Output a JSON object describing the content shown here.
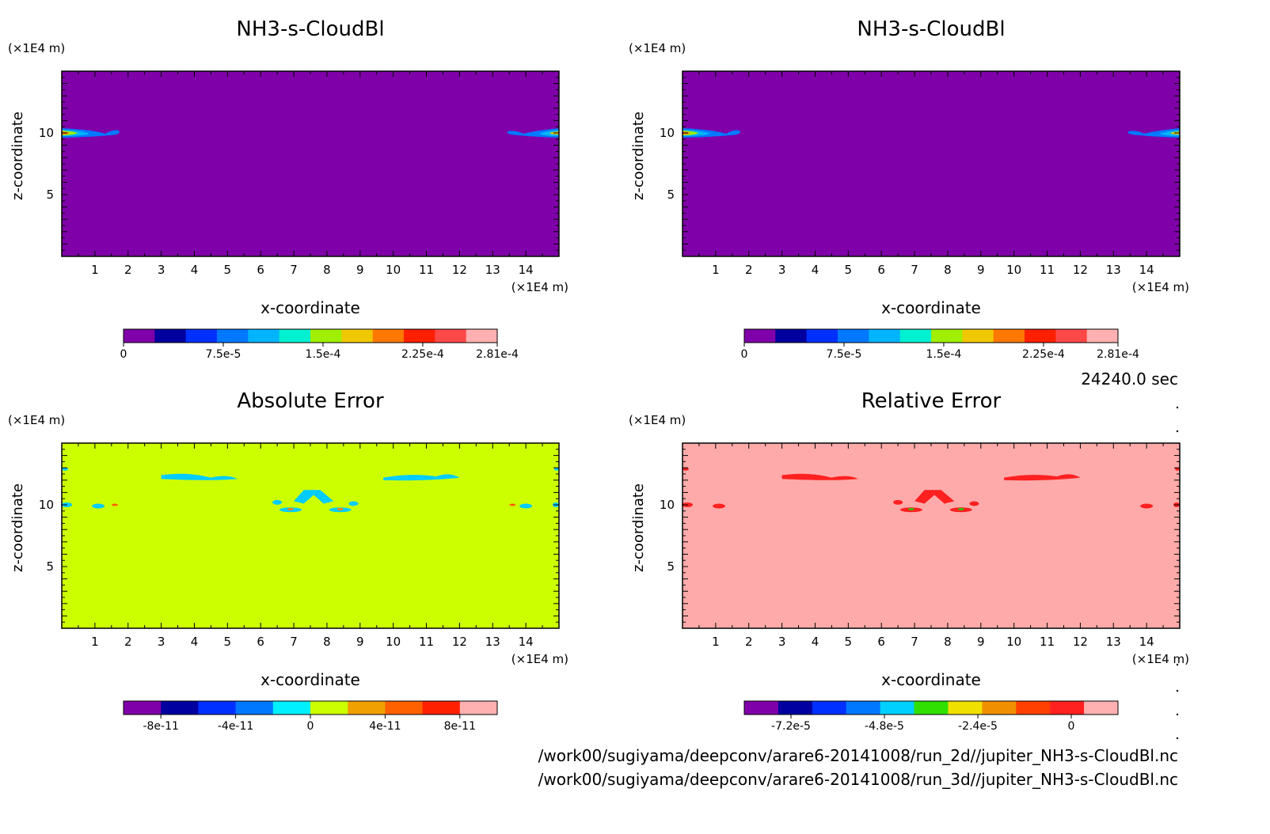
{
  "chart_data": [
    {
      "type": "heatmap",
      "title": "NH3-s-CloudBl",
      "xlabel": "x-coordinate",
      "ylabel": "z-coordinate",
      "x_unit": "(×1E4 m)",
      "y_unit": "(×1E4 m)",
      "xlim": [
        0,
        15
      ],
      "ylim": [
        0,
        15
      ],
      "x_ticks": [
        "1",
        "2",
        "3",
        "4",
        "5",
        "6",
        "7",
        "8",
        "9",
        "10",
        "11",
        "12",
        "13",
        "14"
      ],
      "y_ticks": [
        "5",
        "10"
      ],
      "field_background": "#7f00a8",
      "features": [
        {
          "x": [
            0,
            1.8
          ],
          "z": 10,
          "note": "cloud layer, max near x=0"
        },
        {
          "x": [
            13.7,
            15
          ],
          "z": 10,
          "note": "cloud layer, max near x=15"
        }
      ],
      "colorbar": {
        "ticks": [
          "0",
          "7.5e-5",
          "1.5e-4",
          "2.25e-4",
          "2.81e-4"
        ],
        "tick_values": [
          0,
          7.5e-05,
          0.00015,
          0.000225,
          0.000281
        ],
        "range": [
          0,
          0.000281
        ],
        "colors": [
          "#7f00a8",
          "#0000a0",
          "#0030ff",
          "#0078ff",
          "#00b4ff",
          "#00f0d0",
          "#a0ef00",
          "#f0c800",
          "#ff7800",
          "#ff2000",
          "#ff4848",
          "#ffb0b0"
        ]
      }
    },
    {
      "type": "heatmap",
      "title": "NH3-s-CloudBl",
      "xlabel": "x-coordinate",
      "ylabel": "z-coordinate",
      "x_unit": "(×1E4 m)",
      "y_unit": "(×1E4 m)",
      "xlim": [
        0,
        15
      ],
      "ylim": [
        0,
        15
      ],
      "x_ticks": [
        "1",
        "2",
        "3",
        "4",
        "5",
        "6",
        "7",
        "8",
        "9",
        "10",
        "11",
        "12",
        "13",
        "14"
      ],
      "y_ticks": [
        "5",
        "10"
      ],
      "field_background": "#7f00a8",
      "features": [
        {
          "x": [
            0,
            1.8
          ],
          "z": 10,
          "note": "cloud layer, max near x=0"
        },
        {
          "x": [
            13.7,
            15
          ],
          "z": 10,
          "note": "cloud layer, max near x=15"
        }
      ],
      "colorbar": {
        "ticks": [
          "0",
          "7.5e-5",
          "1.5e-4",
          "2.25e-4",
          "2.81e-4"
        ],
        "tick_values": [
          0,
          7.5e-05,
          0.00015,
          0.000225,
          0.000281
        ],
        "range": [
          0,
          0.000281
        ],
        "colors": [
          "#7f00a8",
          "#0000a0",
          "#0030ff",
          "#0078ff",
          "#00b4ff",
          "#00f0d0",
          "#a0ef00",
          "#f0c800",
          "#ff7800",
          "#ff2000",
          "#ff4848",
          "#ffb0b0"
        ]
      }
    },
    {
      "type": "heatmap",
      "title": "Absolute Error",
      "xlabel": "x-coordinate",
      "ylabel": "z-coordinate",
      "x_unit": "(×1E4 m)",
      "y_unit": "(×1E4 m)",
      "xlim": [
        0,
        15
      ],
      "ylim": [
        0,
        15
      ],
      "x_ticks": [
        "1",
        "2",
        "3",
        "4",
        "5",
        "6",
        "7",
        "8",
        "9",
        "10",
        "11",
        "12",
        "13",
        "14"
      ],
      "y_ticks": [
        "5",
        "10"
      ],
      "field_background": "#ccff00",
      "features": [
        {
          "x": [
            3.0,
            5.3
          ],
          "z": 12.3,
          "note": "small negative error band"
        },
        {
          "x": [
            9.7,
            12.0
          ],
          "z": 12.3,
          "note": "small negative error band"
        },
        {
          "x": [
            6.3,
            8.9
          ],
          "z": 10.2,
          "note": "small negative error blobs"
        }
      ],
      "colorbar": {
        "ticks": [
          "-8e-11",
          "-4e-11",
          "0",
          "4e-11",
          "8e-11"
        ],
        "tick_values": [
          -8e-11,
          -4e-11,
          0,
          4e-11,
          8e-11
        ],
        "range": [
          -1e-10,
          1e-10
        ],
        "colors": [
          "#7f00a8",
          "#0000a0",
          "#0030ff",
          "#0078ff",
          "#00f0ff",
          "#ccff00",
          "#f0a000",
          "#ff6000",
          "#ff2000",
          "#ffb0b0"
        ]
      }
    },
    {
      "type": "heatmap",
      "title": "Relative Error",
      "xlabel": "x-coordinate",
      "ylabel": "z-coordinate",
      "x_unit": "(×1E4 m)",
      "y_unit": "(×1E4 m)",
      "xlim": [
        0,
        15
      ],
      "ylim": [
        0,
        15
      ],
      "x_ticks": [
        "1",
        "2",
        "3",
        "4",
        "5",
        "6",
        "7",
        "8",
        "9",
        "10",
        "11",
        "12",
        "13",
        "14"
      ],
      "y_ticks": [
        "5",
        "10"
      ],
      "field_background": "#ffaaaa",
      "features": [
        {
          "x": [
            3.0,
            5.3
          ],
          "z": 12.3,
          "note": "negative relative error band"
        },
        {
          "x": [
            9.7,
            12.0
          ],
          "z": 12.3,
          "note": "negative relative error band"
        },
        {
          "x": [
            6.3,
            8.9
          ],
          "z": 10.2,
          "note": "negative relative error blobs"
        }
      ],
      "colorbar": {
        "ticks": [
          "-7.2e-5",
          "-4.8e-5",
          "-2.4e-5",
          "0"
        ],
        "tick_values": [
          -7.2e-05,
          -4.8e-05,
          -2.4e-05,
          0
        ],
        "range": [
          -8.4e-05,
          1.2e-05
        ],
        "colors": [
          "#7f00a8",
          "#0000a0",
          "#0030ff",
          "#0078ff",
          "#00d0ff",
          "#30e000",
          "#f0e000",
          "#f09000",
          "#ff4000",
          "#ff2020",
          "#ffb0b0"
        ]
      }
    }
  ],
  "time_label": "24240.0 sec",
  "file_paths": [
    "/work00/sugiyama/deepconv/arare6-20141008/run_2d//jupiter_NH3-s-CloudBl.nc",
    "/work00/sugiyama/deepconv/arare6-20141008/run_3d//jupiter_NH3-s-CloudBl.nc"
  ]
}
